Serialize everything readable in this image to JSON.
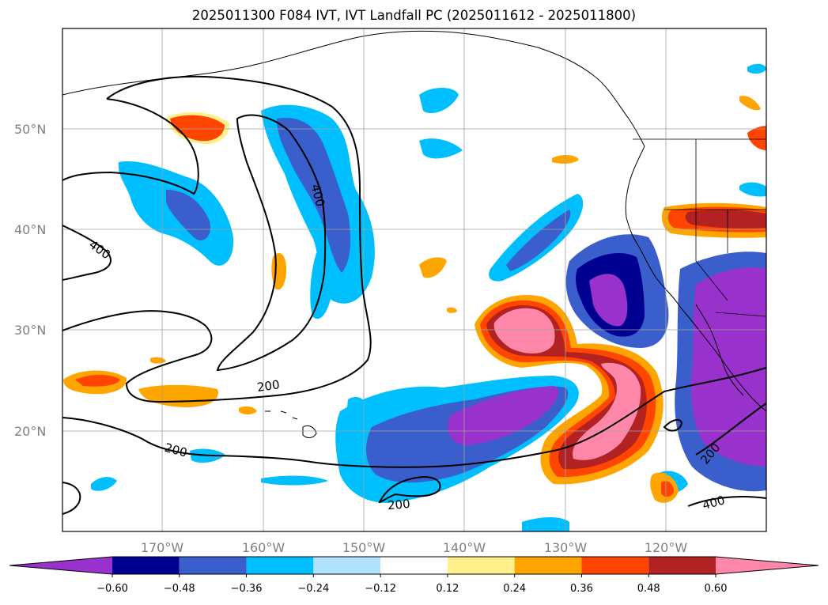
{
  "title": "2025011300 F084 IVT, IVT Landfall PC (2025011612 - 2025011800)",
  "map": {
    "lat_labels": [
      "50°N",
      "40°N",
      "30°N",
      "20°N"
    ],
    "lon_labels": [
      "170°W",
      "160°W",
      "150°W",
      "140°W",
      "130°W",
      "120°W"
    ],
    "contour_labels": [
      "400",
      "400",
      "200",
      "200",
      "200",
      "200",
      "400"
    ],
    "land_color": "#ffffff",
    "grid": true
  },
  "colorbar": {
    "tick_labels": [
      "−0.60",
      "−0.48",
      "−0.36",
      "−0.24",
      "−0.12",
      "0.12",
      "0.24",
      "0.36",
      "0.48",
      "0.60"
    ],
    "colors": [
      "#9932cc",
      "#000090",
      "#3a5fcd",
      "#00bfff",
      "#b0e2ff",
      "#ffffff",
      "#fff08c",
      "#ffa500",
      "#ff4500",
      "#b22222",
      "#ff88aa"
    ]
  }
}
